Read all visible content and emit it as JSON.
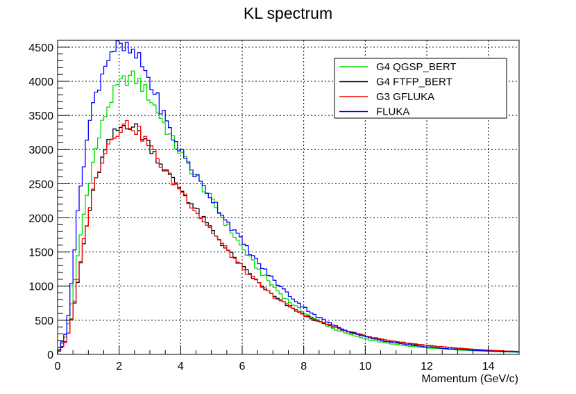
{
  "chart_data": {
    "type": "line",
    "drawstyle": "histogram-step",
    "title": "KL spectrum",
    "xlabel": "Momentum (GeV/c)",
    "ylabel": "",
    "xlim": [
      0,
      15
    ],
    "ylim": [
      0,
      4600
    ],
    "bin_width": 0.1,
    "xticks": [
      0,
      2,
      4,
      6,
      8,
      10,
      12,
      14
    ],
    "xtick_labels": [
      "0",
      "2",
      "4",
      "6",
      "8",
      "10",
      "12",
      "14"
    ],
    "yticks": [
      0,
      500,
      1000,
      1500,
      2000,
      2500,
      3000,
      3500,
      4000,
      4500
    ],
    "ytick_labels": [
      "0",
      "500",
      "1000",
      "1500",
      "2000",
      "2500",
      "3000",
      "3500",
      "4000",
      "4500"
    ],
    "grid": true,
    "legend_position": "top-right",
    "series": [
      {
        "name": "G4 QGSP_BERT",
        "color": "#00dd00",
        "anchors": [
          [
            0.05,
            60
          ],
          [
            0.3,
            300
          ],
          [
            0.5,
            900
          ],
          [
            0.7,
            1600
          ],
          [
            0.9,
            2200
          ],
          [
            1.1,
            2700
          ],
          [
            1.3,
            3100
          ],
          [
            1.5,
            3450
          ],
          [
            1.7,
            3700
          ],
          [
            1.9,
            3880
          ],
          [
            2.1,
            3980
          ],
          [
            2.3,
            4060
          ],
          [
            2.5,
            4050
          ],
          [
            2.7,
            3960
          ],
          [
            2.9,
            3830
          ],
          [
            3.1,
            3680
          ],
          [
            3.3,
            3520
          ],
          [
            3.5,
            3340
          ],
          [
            3.7,
            3160
          ],
          [
            4.0,
            2950
          ],
          [
            4.3,
            2740
          ],
          [
            4.6,
            2540
          ],
          [
            5.0,
            2260
          ],
          [
            5.5,
            1900
          ],
          [
            6.0,
            1560
          ],
          [
            6.5,
            1260
          ],
          [
            7.0,
            1000
          ],
          [
            7.5,
            780
          ],
          [
            8.0,
            620
          ],
          [
            8.5,
            480
          ],
          [
            9.0,
            370
          ],
          [
            9.5,
            290
          ],
          [
            10.0,
            230
          ],
          [
            10.5,
            180
          ],
          [
            11.0,
            145
          ],
          [
            11.5,
            115
          ],
          [
            12.0,
            95
          ],
          [
            12.5,
            80
          ],
          [
            13.0,
            65
          ],
          [
            13.5,
            55
          ],
          [
            14.0,
            45
          ],
          [
            14.5,
            38
          ],
          [
            15.0,
            32
          ]
        ]
      },
      {
        "name": "G4 FTFP_BERT",
        "color": "#000000",
        "anchors": [
          [
            0.05,
            50
          ],
          [
            0.3,
            220
          ],
          [
            0.5,
            600
          ],
          [
            0.7,
            1200
          ],
          [
            0.9,
            1750
          ],
          [
            1.1,
            2250
          ],
          [
            1.3,
            2640
          ],
          [
            1.5,
            2920
          ],
          [
            1.7,
            3120
          ],
          [
            1.9,
            3260
          ],
          [
            2.1,
            3340
          ],
          [
            2.3,
            3390
          ],
          [
            2.5,
            3330
          ],
          [
            2.7,
            3240
          ],
          [
            2.9,
            3120
          ],
          [
            3.1,
            2990
          ],
          [
            3.3,
            2840
          ],
          [
            3.5,
            2700
          ],
          [
            3.7,
            2570
          ],
          [
            4.0,
            2430
          ],
          [
            4.3,
            2240
          ],
          [
            4.6,
            2050
          ],
          [
            5.0,
            1830
          ],
          [
            5.5,
            1540
          ],
          [
            6.0,
            1280
          ],
          [
            6.5,
            1060
          ],
          [
            7.0,
            860
          ],
          [
            7.5,
            710
          ],
          [
            8.0,
            580
          ],
          [
            8.5,
            480
          ],
          [
            9.0,
            400
          ],
          [
            9.5,
            330
          ],
          [
            10.0,
            270
          ],
          [
            10.5,
            220
          ],
          [
            11.0,
            185
          ],
          [
            11.5,
            155
          ],
          [
            12.0,
            130
          ],
          [
            12.5,
            110
          ],
          [
            13.0,
            92
          ],
          [
            13.5,
            75
          ],
          [
            14.0,
            62
          ],
          [
            14.5,
            50
          ],
          [
            15.0,
            42
          ]
        ]
      },
      {
        "name": "G3 GFLUKA",
        "color": "#ff0000",
        "anchors": [
          [
            0.05,
            45
          ],
          [
            0.3,
            210
          ],
          [
            0.5,
            600
          ],
          [
            0.7,
            1250
          ],
          [
            0.9,
            1800
          ],
          [
            1.1,
            2300
          ],
          [
            1.3,
            2660
          ],
          [
            1.5,
            2940
          ],
          [
            1.7,
            3130
          ],
          [
            1.9,
            3260
          ],
          [
            2.1,
            3340
          ],
          [
            2.3,
            3380
          ],
          [
            2.5,
            3320
          ],
          [
            2.7,
            3230
          ],
          [
            2.9,
            3110
          ],
          [
            3.1,
            2980
          ],
          [
            3.3,
            2830
          ],
          [
            3.5,
            2690
          ],
          [
            3.7,
            2560
          ],
          [
            4.0,
            2420
          ],
          [
            4.3,
            2230
          ],
          [
            4.6,
            2040
          ],
          [
            5.0,
            1820
          ],
          [
            5.5,
            1530
          ],
          [
            6.0,
            1270
          ],
          [
            6.5,
            1050
          ],
          [
            7.0,
            860
          ],
          [
            7.5,
            710
          ],
          [
            8.0,
            580
          ],
          [
            8.5,
            480
          ],
          [
            9.0,
            400
          ],
          [
            9.5,
            330
          ],
          [
            10.0,
            275
          ],
          [
            10.5,
            225
          ],
          [
            11.0,
            190
          ],
          [
            11.5,
            160
          ],
          [
            12.0,
            135
          ],
          [
            12.5,
            112
          ],
          [
            13.0,
            92
          ],
          [
            13.5,
            75
          ],
          [
            14.0,
            62
          ],
          [
            14.5,
            50
          ],
          [
            15.0,
            42
          ]
        ]
      },
      {
        "name": "FLUKA",
        "color": "#0000ff",
        "anchors": [
          [
            0.05,
            70
          ],
          [
            0.3,
            350
          ],
          [
            0.5,
            1300
          ],
          [
            0.7,
            2300
          ],
          [
            0.9,
            3000
          ],
          [
            1.1,
            3550
          ],
          [
            1.3,
            3900
          ],
          [
            1.5,
            4200
          ],
          [
            1.7,
            4420
          ],
          [
            1.9,
            4500
          ],
          [
            2.1,
            4470
          ],
          [
            2.3,
            4450
          ],
          [
            2.5,
            4380
          ],
          [
            2.7,
            4280
          ],
          [
            2.9,
            4100
          ],
          [
            3.1,
            3880
          ],
          [
            3.3,
            3680
          ],
          [
            3.5,
            3450
          ],
          [
            3.7,
            3220
          ],
          [
            4.0,
            2990
          ],
          [
            4.3,
            2770
          ],
          [
            4.6,
            2540
          ],
          [
            5.0,
            2300
          ],
          [
            5.5,
            1960
          ],
          [
            6.0,
            1650
          ],
          [
            6.5,
            1350
          ],
          [
            7.0,
            1100
          ],
          [
            7.5,
            880
          ],
          [
            8.0,
            690
          ],
          [
            8.5,
            540
          ],
          [
            9.0,
            420
          ],
          [
            9.5,
            330
          ],
          [
            10.0,
            260
          ],
          [
            10.5,
            205
          ],
          [
            11.0,
            165
          ],
          [
            11.5,
            135
          ],
          [
            12.0,
            110
          ],
          [
            12.5,
            90
          ],
          [
            13.0,
            75
          ],
          [
            13.5,
            60
          ],
          [
            14.0,
            50
          ],
          [
            14.5,
            42
          ],
          [
            15.0,
            35
          ]
        ]
      }
    ]
  }
}
